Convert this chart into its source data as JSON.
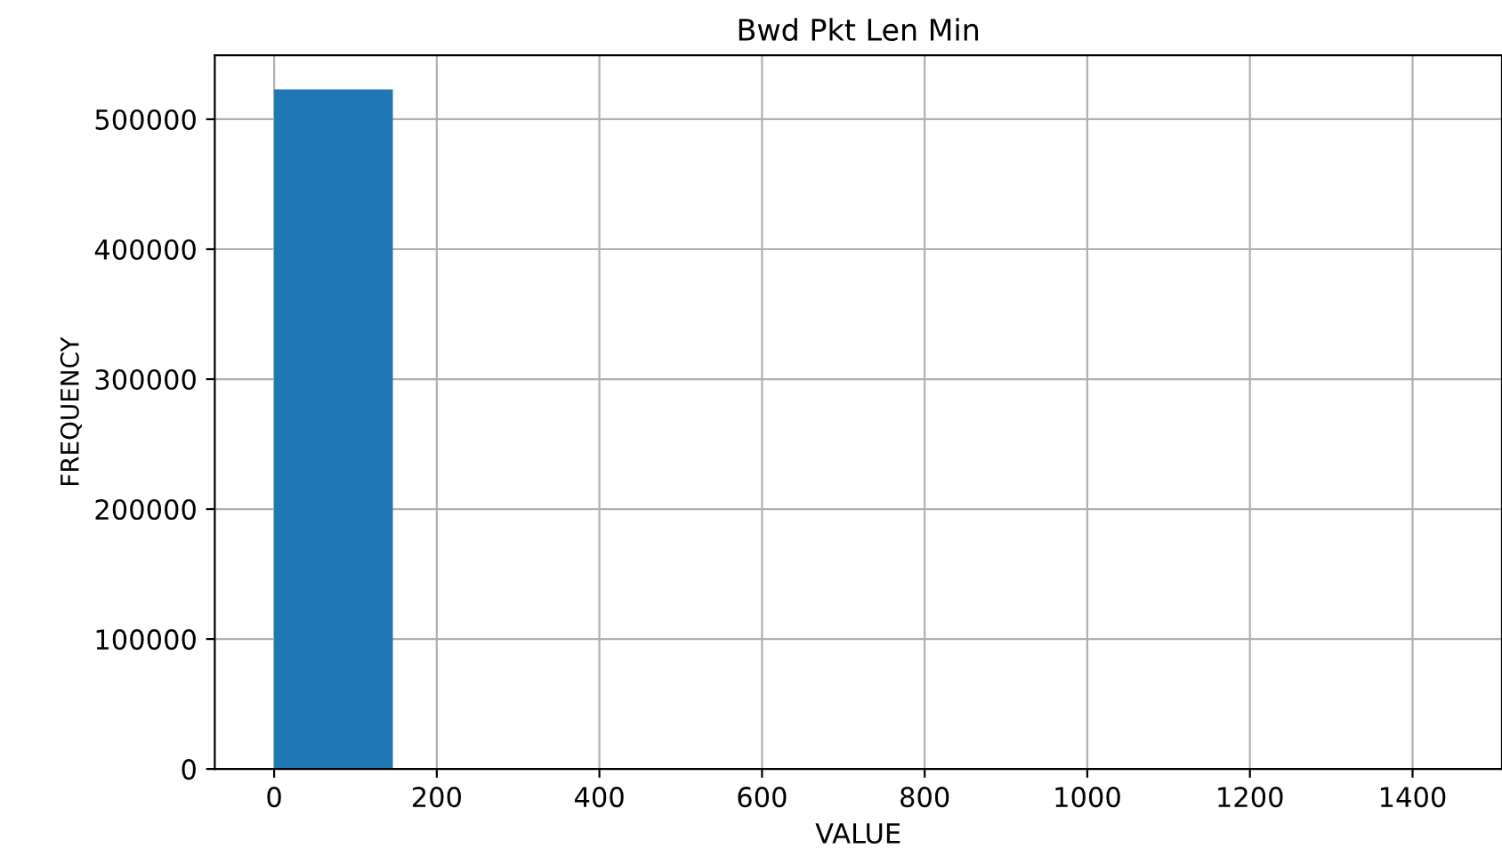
{
  "chart_data": {
    "type": "histogram",
    "title": "Bwd Pkt Len Min",
    "xlabel": "VALUE",
    "ylabel": "FREQUENCY",
    "bins": [
      0,
      146,
      292,
      438,
      584,
      730,
      876,
      1022,
      1168,
      1314,
      1460
    ],
    "values": [
      523000,
      0,
      0,
      0,
      0,
      0,
      0,
      0,
      0,
      0
    ],
    "color": "#1f77b4",
    "xlim": [
      -73,
      1510
    ],
    "ylim": [
      0,
      549150
    ],
    "xticks": [
      0,
      200,
      400,
      600,
      800,
      1000,
      1200,
      1400
    ],
    "yticks": [
      0,
      100000,
      200000,
      300000,
      400000,
      500000
    ],
    "grid": true
  }
}
